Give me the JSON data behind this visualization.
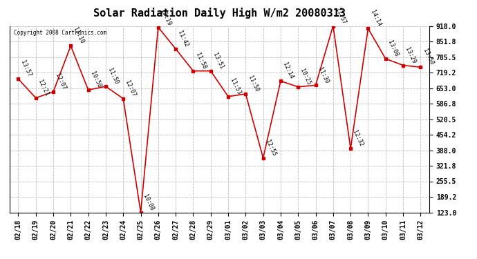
{
  "title": "Solar Radiation Daily High W/m2 20080313",
  "copyright": "Copyright 2008 Cartronics.com",
  "dates": [
    "02/18",
    "02/19",
    "02/20",
    "02/21",
    "02/22",
    "02/23",
    "02/24",
    "02/25",
    "02/26",
    "02/27",
    "02/28",
    "02/29",
    "03/01",
    "03/02",
    "03/03",
    "03/04",
    "03/05",
    "03/06",
    "03/07",
    "03/08",
    "03/09",
    "03/10",
    "03/11",
    "03/12"
  ],
  "values": [
    692,
    611,
    637,
    833,
    645,
    660,
    608,
    123,
    912,
    820,
    726,
    726,
    617,
    628,
    355,
    683,
    658,
    665,
    918,
    395,
    907,
    778,
    750,
    742
  ],
  "labels": [
    "13:57",
    "12:21",
    "12:07",
    "11:10",
    "10:50",
    "11:50",
    "12:07",
    "10:08",
    "12:19",
    "11:42",
    "11:58",
    "13:51",
    "11:53",
    "11:50",
    "12:55",
    "12:14",
    "10:25",
    "11:30",
    "11:57",
    "12:32",
    "14:14",
    "13:08",
    "13:29",
    "13:50"
  ],
  "line_color": "#CC0000",
  "marker_color": "#CC0000",
  "bg_color": "#FFFFFF",
  "grid_color": "#BBBBBB",
  "title_fontsize": 11,
  "label_fontsize": 6,
  "tick_fontsize": 7,
  "ymin": 123.0,
  "ymax": 918.0,
  "yticks": [
    123.0,
    189.2,
    255.5,
    321.8,
    388.0,
    454.2,
    520.5,
    586.8,
    653.0,
    719.2,
    785.5,
    851.8,
    918.0
  ]
}
